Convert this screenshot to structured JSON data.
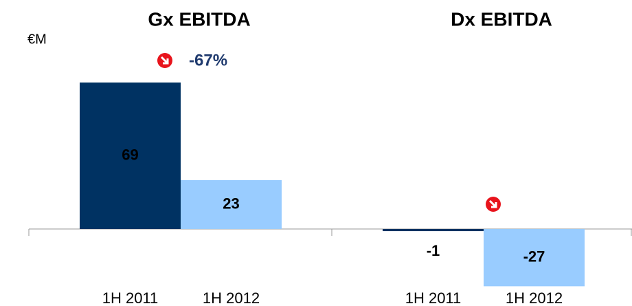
{
  "chart_data": [
    {
      "type": "bar",
      "title": "Gx EBITDA",
      "unit_label": "€M",
      "annotation": "-67%",
      "categories": [
        "1H 2011",
        "1H 2012"
      ],
      "values": [
        69,
        23
      ],
      "colors": [
        "#003262",
        "#99ccff"
      ],
      "ylim": [
        -30,
        75
      ]
    },
    {
      "type": "bar",
      "title": "Dx EBITDA",
      "categories": [
        "1H 2011",
        "1H 2012"
      ],
      "values": [
        -1,
        -27
      ],
      "colors": [
        "#003262",
        "#99ccff"
      ],
      "ylim": [
        -30,
        75
      ]
    }
  ]
}
